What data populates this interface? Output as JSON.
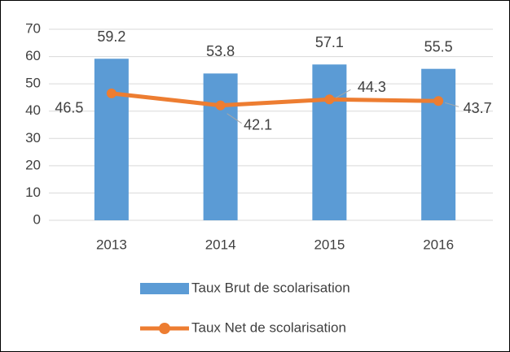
{
  "chart_data": {
    "type": "combo",
    "categories": [
      "2013",
      "2014",
      "2015",
      "2016"
    ],
    "series": [
      {
        "name": "Taux Brut de scolarisation",
        "type": "bar",
        "color": "#5b9bd5",
        "values": [
          59.2,
          53.8,
          57.1,
          55.5
        ]
      },
      {
        "name": "Taux Net de scolarisation",
        "type": "line",
        "color": "#ed7d31",
        "values": [
          46.5,
          42.1,
          44.3,
          43.7
        ]
      }
    ],
    "ylim": [
      0,
      70
    ],
    "yticks": [
      0,
      10,
      20,
      30,
      40,
      50,
      60,
      70
    ],
    "grid": true,
    "legend": "bottom"
  }
}
